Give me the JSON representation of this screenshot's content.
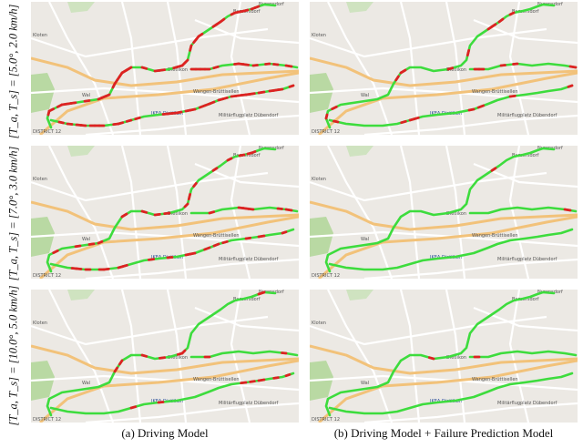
{
  "row_labels": [
    "[T_a, T_s] = [5.0°, 2.0 km/h]",
    "[T_a, T_s] = [7.0°, 3.0 km/h]",
    "[T_a, T_s] = [10.0°, 5.0 km/h]"
  ],
  "captions": [
    "(a) Driving Model",
    "(b) Driving Model + Failure Prediction Model"
  ],
  "map_labels": {
    "top": "Bassersdorf",
    "nurensdorf": "Nurensdorf",
    "kloten": "Kloten",
    "dietlikon": "Dietlikon",
    "wallisellen": "Wallisellen",
    "wangen": "Wangen-Brüttisellen",
    "ikea": "IKEA Dietlikon",
    "militar": "Militärflugplatz Dübendorf",
    "district": "DISTRICT 12",
    "wal": "Wal"
  },
  "colors": {
    "safe": "#3ddc3d",
    "failure": "#dd2222",
    "map_bg": "#ece9e4",
    "highway": "#f2c27a"
  },
  "panels": [
    {
      "row": 0,
      "col": 0,
      "failure_density": 0.55
    },
    {
      "row": 0,
      "col": 1,
      "failure_density": 0.12
    },
    {
      "row": 1,
      "col": 0,
      "failure_density": 0.22
    },
    {
      "row": 1,
      "col": 1,
      "failure_density": 0.05
    },
    {
      "row": 2,
      "col": 0,
      "failure_density": 0.06
    },
    {
      "row": 2,
      "col": 1,
      "failure_density": 0.02
    }
  ]
}
